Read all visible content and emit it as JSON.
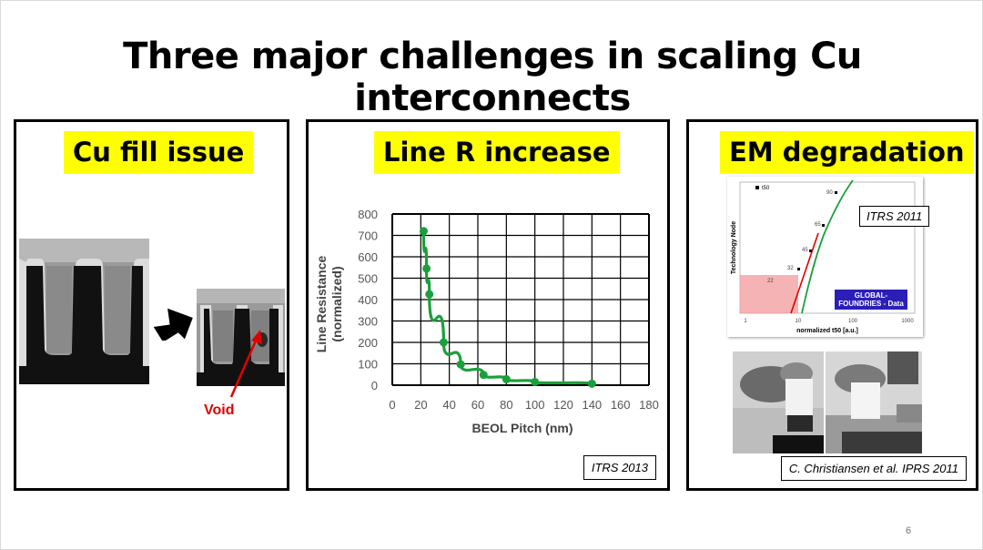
{
  "slide": {
    "title": "Three major challenges in scaling Cu interconnects",
    "page_number": "6"
  },
  "panels": {
    "fill": {
      "heading": "Cu fill issue",
      "void_label": "Void"
    },
    "line_r": {
      "heading": "Line R increase",
      "reference": "ITRS 2013"
    },
    "em": {
      "heading": "EM degradation",
      "itrs_reference": "ITRS 2011",
      "reference": "C. Christiansen et al. IPRS 2011",
      "graph": {
        "legend": "t50",
        "y_label": "Technology Node",
        "x_label": "normalized t50 [a.u.]",
        "x_ticks": [
          "1",
          "10",
          "100",
          "1000"
        ],
        "node_labels": [
          "90",
          "65",
          "45",
          "32",
          "22"
        ],
        "badge_line1": "GLOBAL-",
        "badge_line2": "FOUNDRIES - Data"
      }
    }
  },
  "chart_data": {
    "type": "line",
    "xlabel": "BEOL Pitch (nm)",
    "ylabel": "Line Resistance (normalized)",
    "xlim": [
      0,
      180
    ],
    "ylim": [
      0,
      800
    ],
    "x_ticks": [
      0,
      20,
      40,
      60,
      80,
      100,
      120,
      140,
      160,
      180
    ],
    "y_ticks": [
      0,
      100,
      200,
      300,
      400,
      500,
      600,
      700,
      800
    ],
    "grid": true,
    "series": [
      {
        "color": "#1aa03a",
        "points": [
          {
            "x": 22,
            "y": 720
          },
          {
            "x": 24,
            "y": 545
          },
          {
            "x": 26,
            "y": 425
          },
          {
            "x": 36,
            "y": 200
          },
          {
            "x": 48,
            "y": 97
          },
          {
            "x": 64,
            "y": 48
          },
          {
            "x": 80,
            "y": 28
          },
          {
            "x": 100,
            "y": 15
          },
          {
            "x": 140,
            "y": 7
          }
        ]
      }
    ]
  }
}
